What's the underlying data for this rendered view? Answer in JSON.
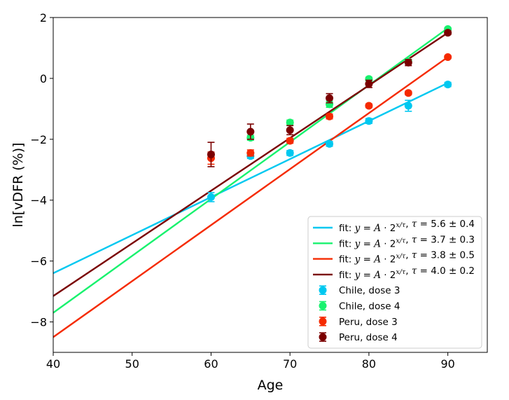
{
  "chart_data": {
    "type": "scatter",
    "xlabel": "Age",
    "ylabel": "ln[vDFR (%)]",
    "xlim": [
      40,
      95
    ],
    "ylim": [
      -9,
      2
    ],
    "xticks": [
      40,
      50,
      60,
      70,
      80,
      90
    ],
    "yticks": [
      -8,
      -6,
      -4,
      -2,
      0,
      2
    ],
    "grid": false,
    "legend_position": "lower-right",
    "fits": [
      {
        "label": "fit: y = A · 2^(x/τ), τ = 5.6 ± 0.4",
        "tau": "5.6 ± 0.4",
        "color": "#00c8f0",
        "x": [
          40,
          90
        ],
        "y": [
          -6.4,
          -0.15
        ]
      },
      {
        "label": "fit: y = A · 2^(x/τ), τ = 3.7 ± 0.3",
        "tau": "3.7 ± 0.3",
        "color": "#18f26e",
        "x": [
          40,
          90
        ],
        "y": [
          -7.7,
          1.65
        ]
      },
      {
        "label": "fit: y = A · 2^(x/τ), τ = 3.8 ± 0.5",
        "tau": "3.8 ± 0.5",
        "color": "#f52a00",
        "x": [
          40,
          90
        ],
        "y": [
          -8.5,
          0.7
        ]
      },
      {
        "label": "fit: y = A · 2^(x/τ), τ = 4.0 ± 0.2",
        "tau": "4.0 ± 0.2",
        "color": "#7a0000",
        "x": [
          40,
          90
        ],
        "y": [
          -7.15,
          1.5
        ]
      }
    ],
    "series": [
      {
        "name": "Chile, dose 3",
        "color": "#00c8f0",
        "points": [
          {
            "x": 60,
            "y": -3.9,
            "err": 0.15
          },
          {
            "x": 65,
            "y": -2.55,
            "err": 0.08
          },
          {
            "x": 70,
            "y": -2.45,
            "err": 0.08
          },
          {
            "x": 75,
            "y": -2.15,
            "err": 0.08
          },
          {
            "x": 80,
            "y": -1.4,
            "err": 0.08
          },
          {
            "x": 85,
            "y": -0.9,
            "err": 0.18
          },
          {
            "x": 90,
            "y": -0.2,
            "err": 0.07
          }
        ]
      },
      {
        "name": "Chile, dose 4",
        "color": "#18f26e",
        "points": [
          {
            "x": 65,
            "y": -1.95,
            "err": 0.08
          },
          {
            "x": 70,
            "y": -1.45,
            "err": 0.08
          },
          {
            "x": 75,
            "y": -0.85,
            "err": 0.1
          },
          {
            "x": 80,
            "y": -0.02,
            "err": 0.06
          },
          {
            "x": 85,
            "y": 0.55,
            "err": 0.06
          },
          {
            "x": 90,
            "y": 1.62,
            "err": 0.05
          }
        ]
      },
      {
        "name": "Peru, dose 3",
        "color": "#f52a00",
        "points": [
          {
            "x": 60,
            "y": -2.62,
            "err": 0.2
          },
          {
            "x": 65,
            "y": -2.45,
            "err": 0.1
          },
          {
            "x": 70,
            "y": -2.05,
            "err": 0.08
          },
          {
            "x": 75,
            "y": -1.25,
            "err": 0.08
          },
          {
            "x": 80,
            "y": -0.9,
            "err": 0.06
          },
          {
            "x": 85,
            "y": -0.48,
            "err": 0.06
          },
          {
            "x": 90,
            "y": 0.7,
            "err": 0.05
          }
        ]
      },
      {
        "name": "Peru, dose 4",
        "color": "#7a0000",
        "points": [
          {
            "x": 60,
            "y": -2.5,
            "err": 0.4
          },
          {
            "x": 65,
            "y": -1.75,
            "err": 0.25
          },
          {
            "x": 70,
            "y": -1.7,
            "err": 0.15
          },
          {
            "x": 75,
            "y": -0.65,
            "err": 0.15
          },
          {
            "x": 80,
            "y": -0.18,
            "err": 0.12
          },
          {
            "x": 85,
            "y": 0.52,
            "err": 0.1
          },
          {
            "x": 90,
            "y": 1.5,
            "err": 0.06
          }
        ]
      }
    ]
  }
}
